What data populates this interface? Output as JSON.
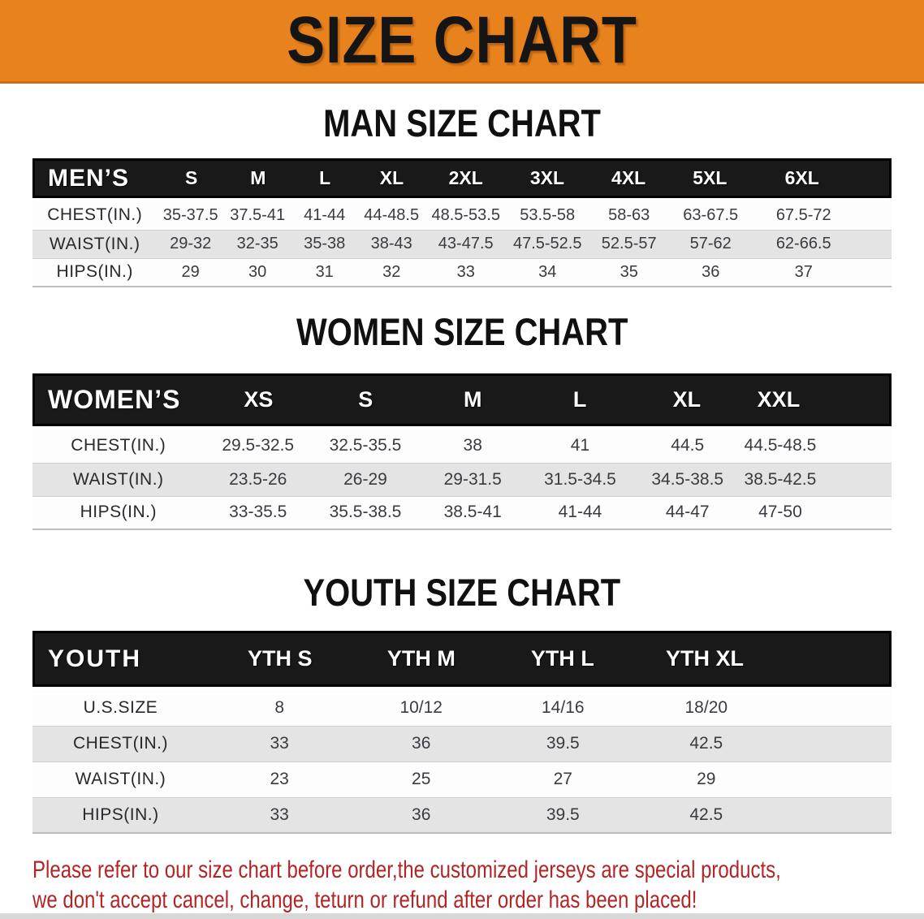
{
  "banner": {
    "title": "SIZE CHART"
  },
  "colors": {
    "banner_bg": "#E8821C",
    "banner_text": "#151515",
    "header_band_bg": "#191919",
    "header_band_text": "#FFFFFF",
    "row_shaded_bg": "#E4E4E4",
    "row_white_bg": "#FDFDFD",
    "cell_text": "#3A3A41",
    "note_text": "#B32525"
  },
  "sections": {
    "men": {
      "heading": "MAN SIZE CHART",
      "table": {
        "header": [
          "MEN’S",
          "S",
          "M",
          "L",
          "XL",
          "2XL",
          "3XL",
          "4XL",
          "5XL",
          "6XL"
        ],
        "rows": [
          [
            "CHEST(IN.)",
            "35-37.5",
            "37.5-41",
            "41-44",
            "44-48.5",
            "48.5-53.5",
            "53.5-58",
            "58-63",
            "63-67.5",
            "67.5-72"
          ],
          [
            "WAIST(IN.)",
            "29-32",
            "32-35",
            "35-38",
            "38-43",
            "43-47.5",
            "47.5-52.5",
            "52.5-57",
            "57-62",
            "62-66.5"
          ],
          [
            "HIPS(IN.)",
            "29",
            "30",
            "31",
            "32",
            "33",
            "34",
            "35",
            "36",
            "37"
          ]
        ]
      }
    },
    "women": {
      "heading": "WOMEN SIZE CHART",
      "table": {
        "header": [
          "WOMEN’S",
          "XS",
          "S",
          "M",
          "L",
          "XL",
          "XXL"
        ],
        "rows": [
          [
            "CHEST(IN.)",
            "29.5-32.5",
            "32.5-35.5",
            "38",
            "41",
            "44.5",
            "44.5-48.5"
          ],
          [
            "WAIST(IN.)",
            "23.5-26",
            "26-29",
            "29-31.5",
            "31.5-34.5",
            "34.5-38.5",
            "38.5-42.5"
          ],
          [
            "HIPS(IN.)",
            "33-35.5",
            "35.5-38.5",
            "38.5-41",
            "41-44",
            "44-47",
            "47-50"
          ]
        ]
      }
    },
    "youth": {
      "heading": "YOUTH SIZE CHART",
      "table": {
        "header": [
          "YOUTH",
          "YTH S",
          "YTH M",
          "YTH L",
          "YTH XL"
        ],
        "rows": [
          [
            "U.S.SIZE",
            "8",
            "10/12",
            "14/16",
            "18/20"
          ],
          [
            "CHEST(IN.)",
            "33",
            "36",
            "39.5",
            "42.5"
          ],
          [
            "WAIST(IN.)",
            "23",
            "25",
            "27",
            "29"
          ],
          [
            "HIPS(IN.)",
            "33",
            "36",
            "39.5",
            "42.5"
          ]
        ]
      }
    }
  },
  "note": {
    "line1": "Please refer to our size chart before order,the customized jerseys are special products,",
    "line2": "we don't accept cancel, change, teturn or refund after order has been placed!"
  }
}
